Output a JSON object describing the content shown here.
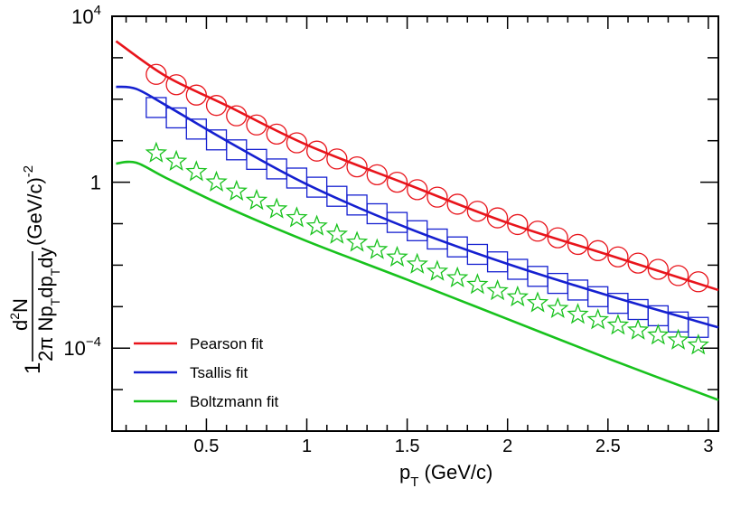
{
  "chart_data": {
    "type": "scatter",
    "title": "",
    "xlabel": {
      "main": "p",
      "sub": "T",
      "rest": " (GeV/c)"
    },
    "ylabel": {
      "one": "1",
      "num_d": "d",
      "num_sup": "2",
      "num_n": "N",
      "den_pi": "2π Np",
      "den_sub1": "T",
      "den_dp": "dp",
      "den_sub2": "T",
      "den_dy": "dy",
      "units": "(GeV/c)",
      "units_sup": "-2"
    },
    "xlim": [
      0.03,
      3.05
    ],
    "ylim_log10": [
      -6,
      4
    ],
    "x_ticks": [
      {
        "value": 0.5,
        "label": "0.5"
      },
      {
        "value": 1,
        "label": "1"
      },
      {
        "value": 1.5,
        "label": "1.5"
      },
      {
        "value": 2,
        "label": "2"
      },
      {
        "value": 2.5,
        "label": "2.5"
      },
      {
        "value": 3,
        "label": "3"
      }
    ],
    "y_ticks": [
      {
        "exp": 4,
        "base": "10",
        "sup": "4"
      },
      {
        "exp": 0,
        "base": "1",
        "sup": ""
      },
      {
        "exp": -4,
        "base": "10",
        "sup": "−4"
      }
    ],
    "y_minor_exps": [
      -5,
      -3,
      -2,
      -1,
      1,
      2,
      3
    ],
    "data_x": [
      0.25,
      0.35,
      0.45,
      0.55,
      0.65,
      0.75,
      0.85,
      0.95,
      1.05,
      1.15,
      1.25,
      1.35,
      1.45,
      1.55,
      1.65,
      1.75,
      1.85,
      1.95,
      2.05,
      2.15,
      2.25,
      2.35,
      2.45,
      2.55,
      2.65,
      2.75,
      2.85,
      2.95
    ],
    "series": [
      {
        "name": "Pearson fit",
        "color": "#e8141b",
        "marker": "circle",
        "log10_values": [
          2.6,
          2.35,
          2.1,
          1.85,
          1.6,
          1.38,
          1.16,
          0.95,
          0.75,
          0.56,
          0.37,
          0.18,
          0.0,
          -0.18,
          -0.36,
          -0.53,
          -0.7,
          -0.86,
          -1.02,
          -1.18,
          -1.34,
          -1.5,
          -1.65,
          -1.8,
          -1.95,
          -2.1,
          -2.25,
          -2.4
        ],
        "fit_points": [
          [
            0.05,
            3.4
          ],
          [
            0.3,
            2.55
          ],
          [
            0.6,
            1.85
          ],
          [
            1.0,
            0.9
          ],
          [
            1.5,
            -0.05
          ],
          [
            2.0,
            -0.98
          ],
          [
            2.5,
            -1.75
          ],
          [
            3.05,
            -2.6
          ]
        ]
      },
      {
        "name": "Tsallis fit",
        "color": "#1520d0",
        "marker": "square",
        "log10_values": [
          1.8,
          1.55,
          1.28,
          1.02,
          0.78,
          0.55,
          0.32,
          0.1,
          -0.12,
          -0.34,
          -0.55,
          -0.76,
          -0.97,
          -1.17,
          -1.37,
          -1.56,
          -1.74,
          -1.92,
          -2.1,
          -2.27,
          -2.44,
          -2.6,
          -2.76,
          -2.92,
          -3.07,
          -3.22,
          -3.37,
          -3.5
        ],
        "fit_points": [
          [
            0.05,
            2.3
          ],
          [
            0.15,
            2.25
          ],
          [
            0.3,
            1.85
          ],
          [
            0.6,
            1.0
          ],
          [
            1.0,
            -0.05
          ],
          [
            1.5,
            -1.1
          ],
          [
            2.0,
            -1.97
          ],
          [
            2.5,
            -2.73
          ],
          [
            3.05,
            -3.5
          ]
        ]
      },
      {
        "name": "Boltzmann fit",
        "color": "#18c21d",
        "marker": "star",
        "log10_values": [
          0.7,
          0.5,
          0.25,
          0.0,
          -0.22,
          -0.44,
          -0.65,
          -0.86,
          -1.06,
          -1.26,
          -1.45,
          -1.63,
          -1.81,
          -1.98,
          -2.15,
          -2.31,
          -2.47,
          -2.62,
          -2.77,
          -2.91,
          -3.05,
          -3.19,
          -3.32,
          -3.45,
          -3.57,
          -3.69,
          -3.81,
          -3.93
        ],
        "fit_points": [
          [
            0.05,
            0.45
          ],
          [
            0.15,
            0.47
          ],
          [
            0.3,
            0.1
          ],
          [
            0.6,
            -0.6
          ],
          [
            1.0,
            -1.42
          ],
          [
            1.5,
            -2.35
          ],
          [
            2.0,
            -3.3
          ],
          [
            2.5,
            -4.25
          ],
          [
            3.05,
            -5.25
          ]
        ]
      }
    ],
    "legend": {
      "position": "bottom-left"
    }
  }
}
